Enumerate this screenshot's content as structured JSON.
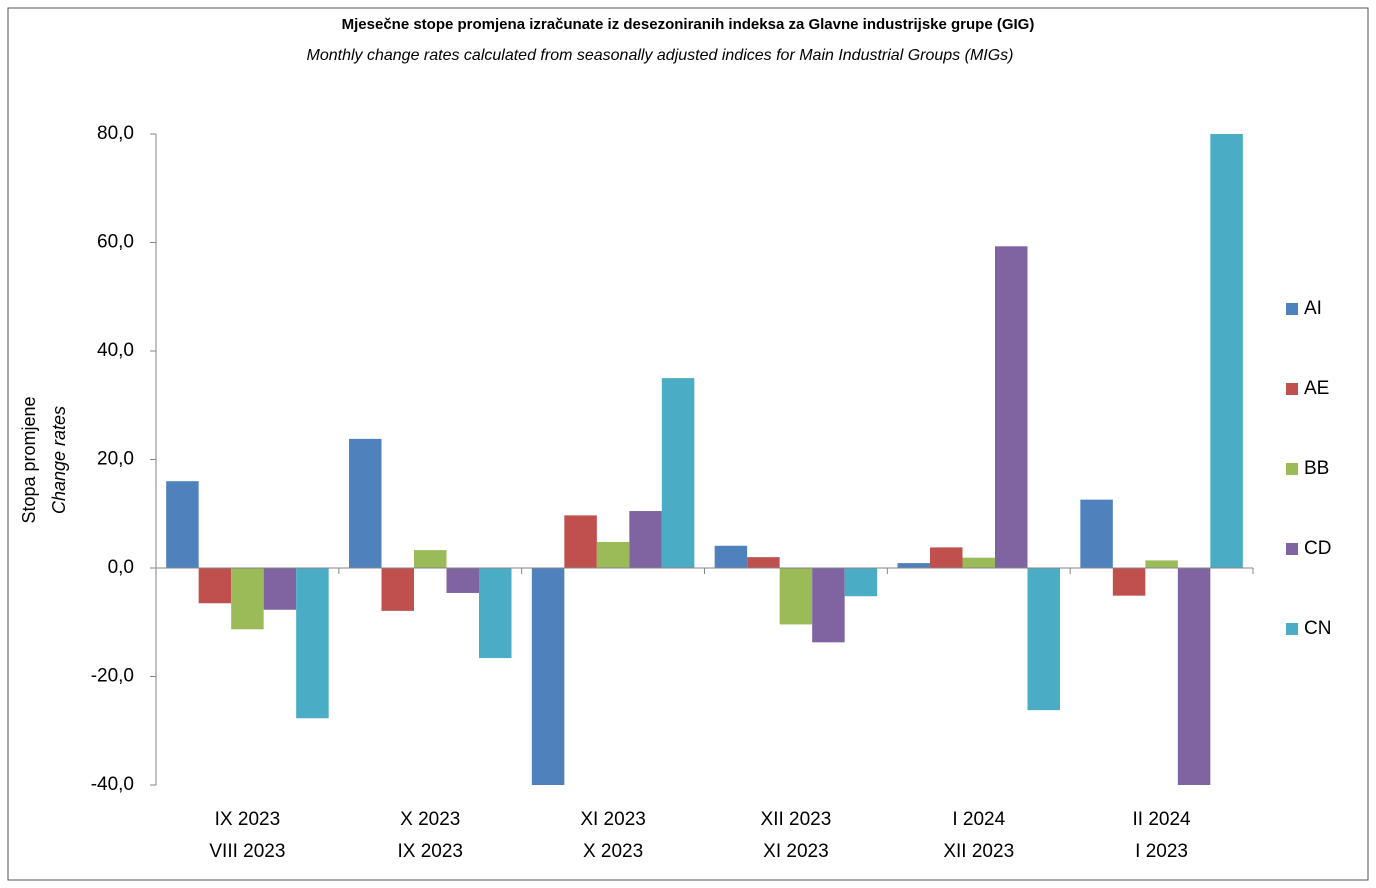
{
  "chart_data": {
    "type": "bar",
    "title": "Mjesečne stope promjena izračunate iz desezoniranih indeksa za Glavne industrijske grupe (GIG)",
    "subtitle": "Monthly change rates calculated from seasonally adjusted indices for Main Industrial Groups (MIGs)",
    "y_label": [
      "Stopa promjene",
      "Change rates"
    ],
    "categories": [
      [
        "IX 2023",
        "VIII 2023"
      ],
      [
        "X 2023",
        "IX 2023"
      ],
      [
        "XI 2023",
        "X 2023"
      ],
      [
        "XII 2023",
        "XI 2023"
      ],
      [
        "I 2024",
        "XII 2023"
      ],
      [
        "II 2024",
        "I 2023"
      ]
    ],
    "series": [
      {
        "name": "AI",
        "color": "#4f81bd",
        "values": [
          16.0,
          23.8,
          -40.0,
          4.1,
          0.9,
          12.6
        ]
      },
      {
        "name": "AE",
        "color": "#c0504d",
        "values": [
          -6.5,
          -7.9,
          9.7,
          2.0,
          3.8,
          -5.1
        ]
      },
      {
        "name": "BB",
        "color": "#9bbb59",
        "values": [
          -11.3,
          3.3,
          4.8,
          -10.4,
          1.9,
          1.4
        ]
      },
      {
        "name": "CD",
        "color": "#8064a2",
        "values": [
          -7.7,
          -4.6,
          10.5,
          -13.7,
          59.3,
          -40.0
        ]
      },
      {
        "name": "CN",
        "color": "#4bacc6",
        "values": [
          -27.7,
          -16.6,
          35.0,
          -5.2,
          -26.2,
          80.0
        ]
      }
    ],
    "ylim": [
      -40,
      80
    ],
    "yticks": [
      {
        "value": -40,
        "label": "-40,0"
      },
      {
        "value": -20,
        "label": "-20,0"
      },
      {
        "value": 0,
        "label": "0,0"
      },
      {
        "value": 20,
        "label": "20,0"
      },
      {
        "value": 40,
        "label": "40,0"
      },
      {
        "value": 60,
        "label": "60,0"
      },
      {
        "value": 80,
        "label": "80,0"
      }
    ],
    "grid": false,
    "legend": "right"
  }
}
